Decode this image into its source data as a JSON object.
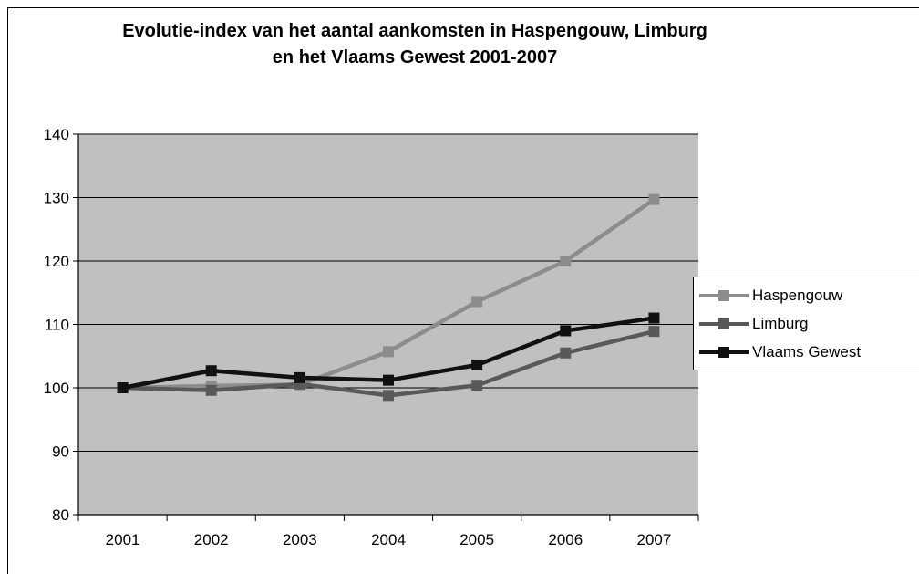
{
  "chart_data": {
    "type": "line",
    "title": [
      "Evolutie-index van het aantal aankomsten in Haspengouw, Limburg",
      "en het Vlaams Gewest 2001-2007"
    ],
    "xlabel": "",
    "ylabel": "",
    "categories": [
      "2001",
      "2002",
      "2003",
      "2004",
      "2005",
      "2006",
      "2007"
    ],
    "yticks": [
      "80",
      "90",
      "100",
      "110",
      "120",
      "130",
      "140"
    ],
    "ylim": [
      80,
      140
    ],
    "grid": "horizontal",
    "legend_position": "right",
    "series": [
      {
        "name": "Haspengouw",
        "color": "#8c8c8c",
        "values": [
          100,
          100.3,
          100.5,
          105.7,
          113.6,
          120.0,
          129.7
        ]
      },
      {
        "name": "Limburg",
        "color": "#595959",
        "values": [
          100,
          99.6,
          100.6,
          98.8,
          100.4,
          105.5,
          108.9
        ]
      },
      {
        "name": "Vlaams Gewest",
        "color": "#111111",
        "values": [
          100,
          102.7,
          101.6,
          101.2,
          103.6,
          109.0,
          111.0
        ]
      }
    ],
    "plot_background": "#c0c0c0"
  }
}
